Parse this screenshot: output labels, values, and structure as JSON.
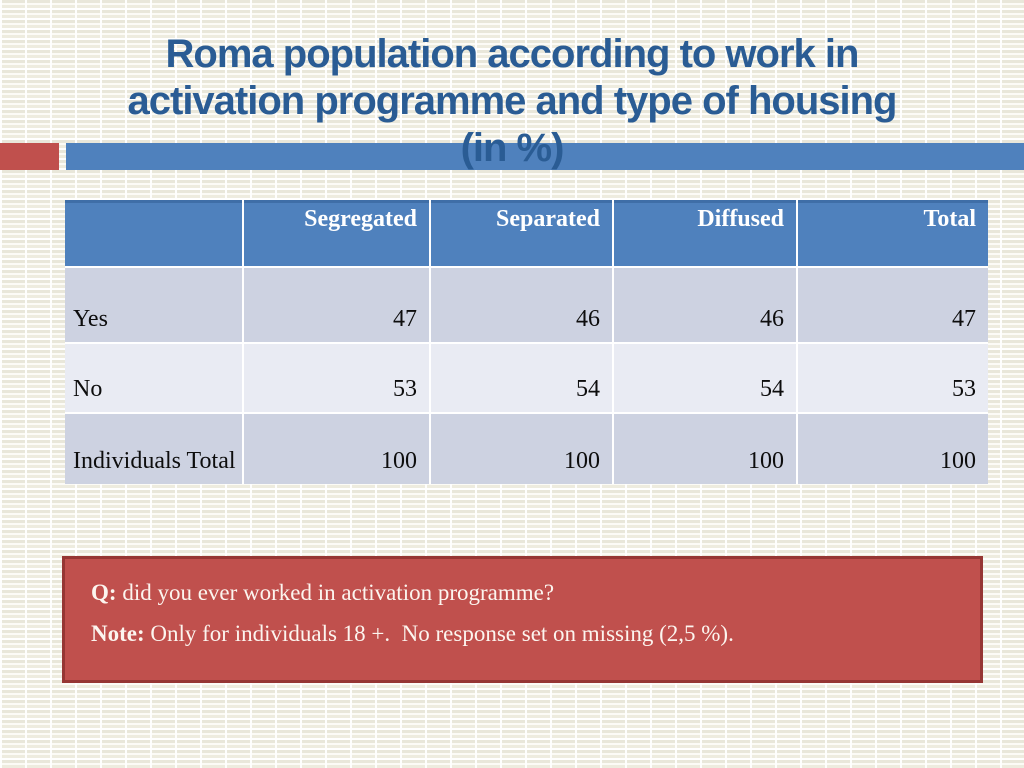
{
  "title": {
    "lines": [
      "Roma population according to work in",
      "activation programme and type of housing",
      "(in %)"
    ]
  },
  "table": {
    "headers": [
      "",
      "Segregated",
      "Separated",
      "Diffused",
      "Total"
    ],
    "rows": [
      {
        "label": "Yes",
        "values": [
          "47",
          "46",
          "46",
          "47"
        ]
      },
      {
        "label": "No",
        "values": [
          "53",
          "54",
          "54",
          "53"
        ]
      },
      {
        "label": "Individuals Total",
        "values": [
          "100",
          "100",
          "100",
          "100"
        ]
      }
    ]
  },
  "note_box": {
    "q_label": "Q:",
    "q_text": " did you ever worked in activation programme?",
    "note_label": "Note:",
    "note_text": " Only for individuals 18 +.  No response set on missing (2,5 %)."
  },
  "colors": {
    "title_blue": "#2a5c94",
    "bar_blue": "#4f81bd",
    "accent_red": "#c0504d",
    "note_fill_red": "#c0504d",
    "note_border_red": "#963634",
    "header_blue": "#4f81bd",
    "row_dark": "#cdd2e1",
    "row_light": "#e9ebf3"
  }
}
